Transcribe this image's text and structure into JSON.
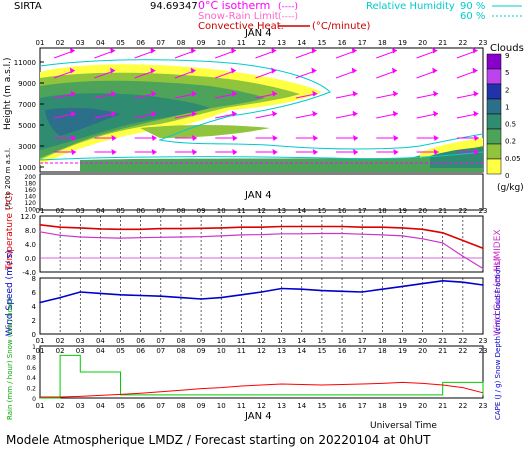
{
  "header": {
    "site": "SIRTA",
    "coords": "94.69347",
    "legend_isotherm": "0°C isotherm",
    "legend_isotherm_box": "(----)",
    "legend_snow": "Snow-Rain Limit",
    "legend_snow_box": "(----)",
    "legend_convective": "Convective Heat.",
    "legend_convective_unit": "(°C/minute)",
    "legend_rh": "Relative Humidity",
    "legend_rh_90": "90 %",
    "legend_rh_60": "60 %"
  },
  "hours": [
    "01",
    "02",
    "03",
    "04",
    "05",
    "06",
    "07",
    "08",
    "09",
    "10",
    "11",
    "12",
    "13",
    "14",
    "15",
    "16",
    "17",
    "18",
    "19",
    "20",
    "21",
    "22",
    "23"
  ],
  "date_label": "JAN 4",
  "colors": {
    "isotherm": "#ff00ff",
    "convective": "#cc0000",
    "rh": "#00cccc",
    "temperature": "#dd0000",
    "humidex": "#cc33cc",
    "wind": "#0000cc",
    "precip": "#00cc00",
    "snow": "#0000ff",
    "cape": "#ff0000"
  },
  "chart_data": [
    {
      "type": "heatmap",
      "panel": "clouds",
      "ylabel": "Height  (m a.s.l.)",
      "ylabel_low": "Up to 200 m a.s.l.",
      "yticks_upper": [
        "11000",
        "9000",
        "7000",
        "5000",
        "3000",
        "1000"
      ],
      "yticks_lower": [
        "200",
        "180",
        "160",
        "140",
        "120",
        "100"
      ],
      "colorbar_title": "Clouds",
      "colorbar_unit": "(g/kg)",
      "colorbar_levels": [
        "9",
        "5",
        "2",
        "1",
        "0.5",
        "0.2",
        "0.05",
        "0"
      ],
      "colorbar_colors": [
        "#8800cc",
        "#bb44ee",
        "#2233aa",
        "#2c6f8a",
        "#2f8c70",
        "#4da35a",
        "#8fc43c",
        "#ffff44"
      ]
    },
    {
      "type": "line",
      "panel": "temperature",
      "ylabel": "Temperature (°C)",
      "ylabel_right": "HUMIDEX",
      "yticks": [
        "12.0",
        "8.0",
        "4.0",
        "0.0",
        "-4.0"
      ],
      "ylim": [
        -4,
        12
      ],
      "series": [
        {
          "name": "Temperature",
          "values": [
            9.5,
            8.8,
            8.6,
            8.3,
            8.2,
            8.2,
            8.4,
            8.4,
            8.5,
            8.6,
            8.8,
            8.8,
            9.0,
            9.0,
            9.0,
            9.0,
            8.8,
            8.8,
            8.6,
            8.2,
            7.2,
            5.0,
            2.8
          ]
        },
        {
          "name": "HUMIDEX",
          "values": [
            7.5,
            6.5,
            6.0,
            5.8,
            5.7,
            5.8,
            5.9,
            6.0,
            6.1,
            6.3,
            6.6,
            6.7,
            6.9,
            6.9,
            7.0,
            7.0,
            6.8,
            6.6,
            6.3,
            5.5,
            4.3,
            0.5,
            -3.0
          ]
        }
      ]
    },
    {
      "type": "line",
      "panel": "wind",
      "ylabel": "Wind Speed (m / s)",
      "ylabel_right": "Wind Gust (m / s)",
      "yticks": [
        "8",
        "6",
        "4",
        "2",
        "0"
      ],
      "ylim": [
        0,
        8
      ],
      "series": [
        {
          "name": "Wind Speed",
          "values": [
            4.5,
            5.2,
            6.0,
            5.8,
            5.6,
            5.5,
            5.4,
            5.2,
            5.0,
            5.2,
            5.6,
            6.0,
            6.5,
            6.4,
            6.2,
            6.1,
            6.0,
            6.4,
            6.8,
            7.2,
            7.6,
            7.4,
            7.0
          ]
        }
      ]
    },
    {
      "type": "line",
      "panel": "precipitation",
      "ylabel": "Rain (mm / hour)  Snow (cm / hour)",
      "ylabel_right": "CAPE (J / g)  Snow Depth (cm)  Cloud Fraction",
      "yticks": [
        "1",
        "0.8",
        "0.6",
        "0.4",
        "0.2",
        "0"
      ],
      "ylim": [
        0,
        1
      ],
      "series": [
        {
          "name": "Rain",
          "values": [
            0.0,
            0.82,
            0.5,
            0.5,
            0.06,
            0.06,
            0.06,
            0.06,
            0.06,
            0.06,
            0.06,
            0.06,
            0.06,
            0.06,
            0.06,
            0.06,
            0.06,
            0.06,
            0.06,
            0.06,
            0.3,
            0.3,
            0.05
          ]
        },
        {
          "name": "CAPE",
          "values": [
            0.02,
            0.02,
            0.03,
            0.05,
            0.07,
            0.09,
            0.12,
            0.15,
            0.18,
            0.2,
            0.23,
            0.25,
            0.27,
            0.26,
            0.25,
            0.26,
            0.27,
            0.28,
            0.3,
            0.28,
            0.25,
            0.2,
            0.1
          ]
        }
      ]
    }
  ],
  "footer": {
    "universal_time": "Universal Time",
    "bottom_title": "Modele Atmospherique LMDZ / Forecast starting on 20220104 at 0hUT"
  }
}
